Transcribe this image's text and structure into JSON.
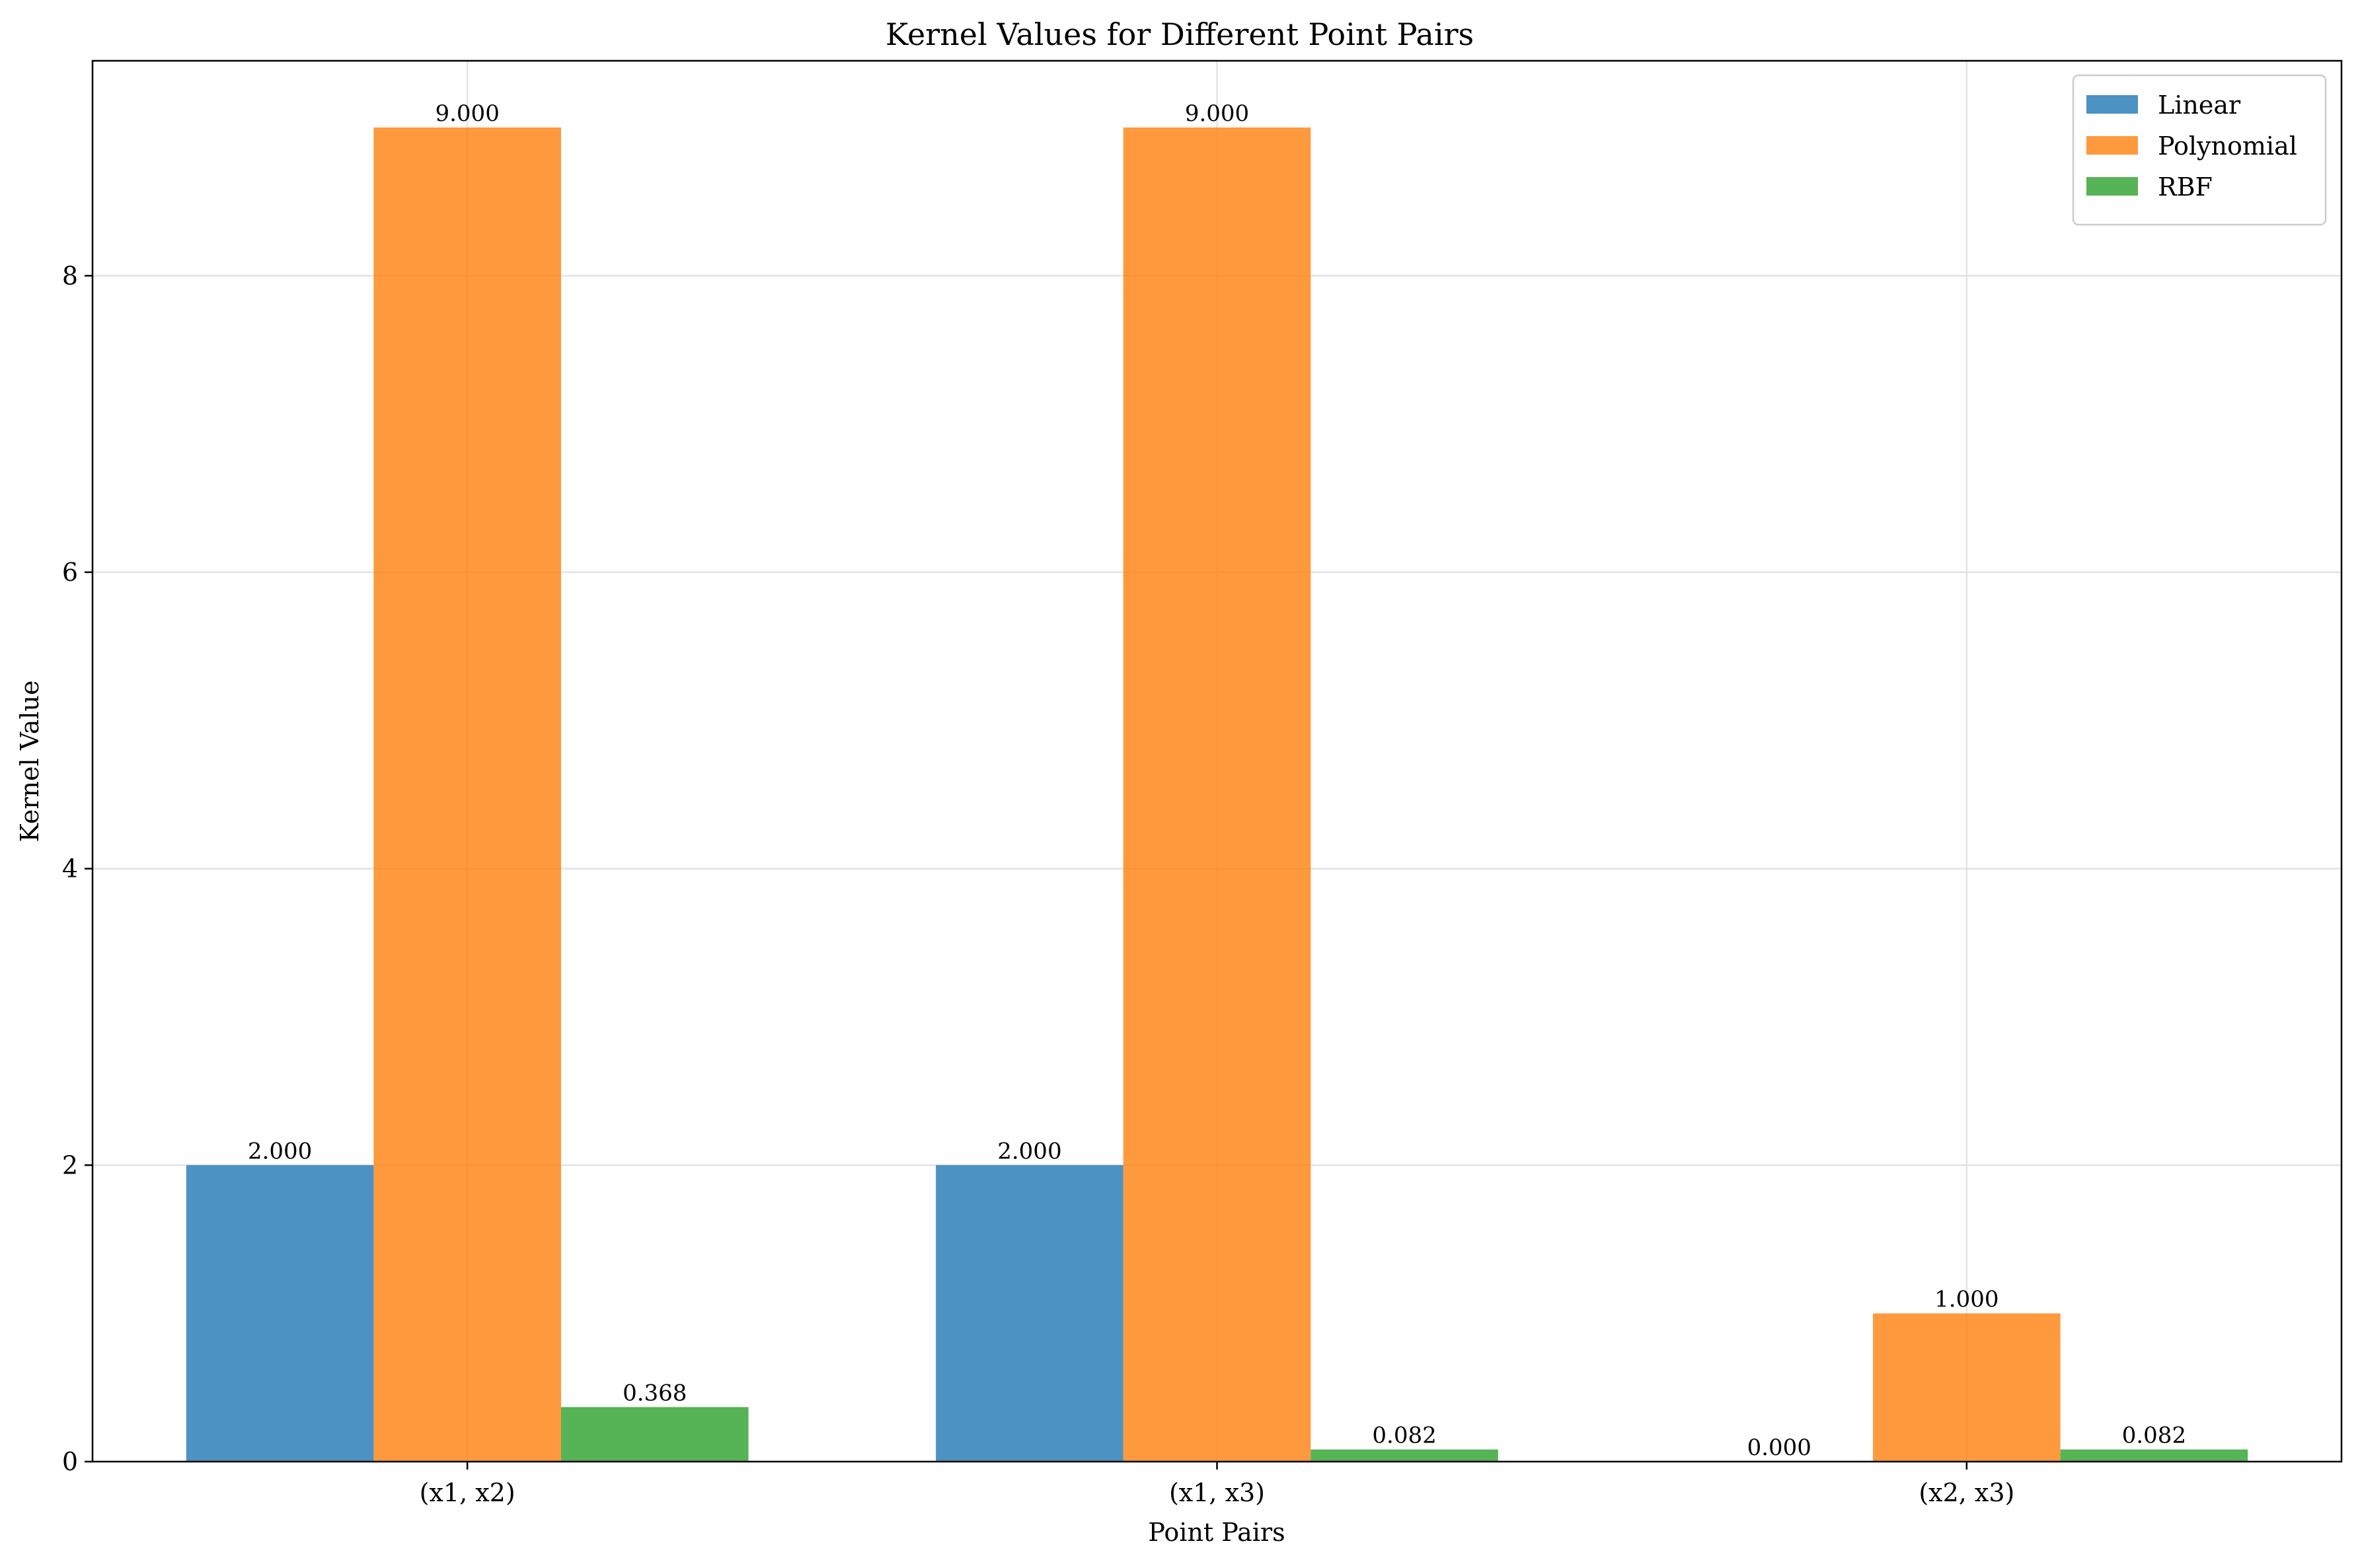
{
  "chart_data": {
    "type": "bar",
    "title": "Kernel Values for Different Point Pairs",
    "xlabel": "Point Pairs",
    "ylabel": "Kernel Value",
    "categories": [
      "(x1, x2)",
      "(x1, x3)",
      "(x2, x3)"
    ],
    "series": [
      {
        "name": "Linear",
        "values": [
          2.0,
          2.0,
          0.0
        ],
        "color": "#1f77b4",
        "labels": [
          "2.000",
          "2.000",
          "0.000"
        ]
      },
      {
        "name": "Polynomial",
        "values": [
          9.0,
          9.0,
          1.0
        ],
        "color": "#ff7f0e",
        "labels": [
          "9.000",
          "9.000",
          "1.000"
        ]
      },
      {
        "name": "RBF",
        "values": [
          0.368,
          0.082,
          0.082
        ],
        "color": "#2ca02c",
        "labels": [
          "0.368",
          "0.082",
          "0.082"
        ]
      }
    ],
    "ylim": [
      0,
      9.45
    ],
    "yticks": [
      0,
      2,
      4,
      6,
      8
    ],
    "grid": true,
    "legend_position": "top-right",
    "bar_opacity": 0.8
  }
}
